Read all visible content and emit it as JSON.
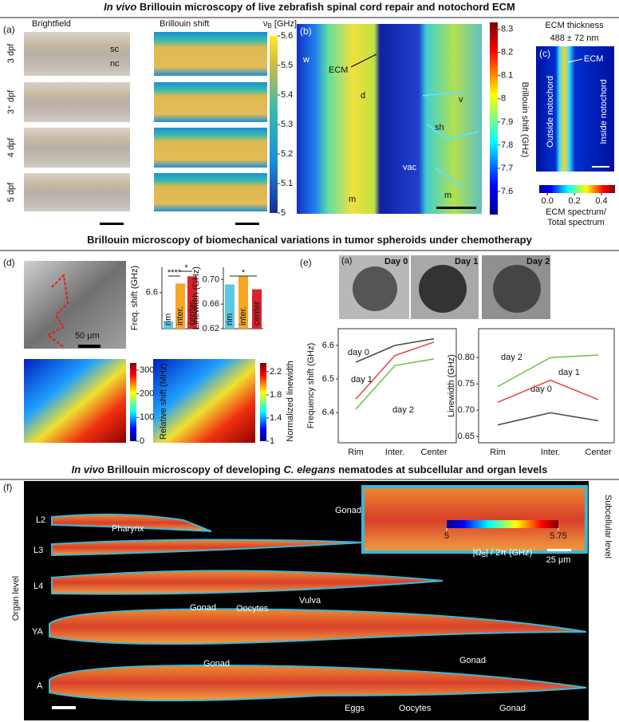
{
  "headers": [
    {
      "parts": [
        "In vivo",
        " Brillouin microscopy of live zebrafish spinal cord repair and notochord ECM"
      ]
    },
    {
      "parts": [
        "Brillouin microscopy of biomechanical variations in tumor spheroids under chemotherapy"
      ]
    },
    {
      "parts": [
        "In vivo",
        " Brillouin microscopy of developing ",
        "C. elegans",
        " nematodes at subcellular and organ levels"
      ]
    }
  ],
  "panel_a": {
    "label": "(a)",
    "brightfield": "Brightfield",
    "brillouin": "Brillouin shift",
    "unit_symbol": "ν",
    "unit_sub": "B",
    "unit": " [GHz]",
    "rows": [
      "3 dpf",
      "3⁺ dpf",
      "4 dpf",
      "5 dpf"
    ],
    "sc": "sc",
    "nc": "nc"
  },
  "panel_b": {
    "label": "(b)",
    "w": "w",
    "ecm": "ECM",
    "d": "d",
    "v": "v",
    "sh": "sh",
    "vac": "vac",
    "m1": "m",
    "m2": "m",
    "colorbar_label": "Brillouin shift (GHz)"
  },
  "panel_c": {
    "label": "(c)",
    "title": "ECM thickness",
    "value": "488 ± 72 nm",
    "ecm": "ECM",
    "outside": "Outside notochord",
    "inside": "Inside notochord",
    "colorbar_label": [
      "ECM spectrum/",
      "Total spectrum"
    ]
  },
  "panel_d": {
    "label": "(d)",
    "scale": "50 μm",
    "colorbar_labels": [
      "Relative shift (MHz)",
      "Normalized linewidth"
    ]
  },
  "panel_e": {
    "label": "(e)",
    "inset_label": "(a)",
    "days": [
      "Day 0",
      "Day 1",
      "Day 2"
    ]
  },
  "panel_f": {
    "label": "(f)",
    "stages": [
      "L2",
      "L3",
      "L4",
      "YA",
      "A"
    ],
    "organ_level": "Organ level",
    "subcellular_level": "Subcellular level",
    "scale": "25 μm",
    "annotations": [
      "Pharynx",
      "Vulva",
      "Gonad",
      "Oocytes",
      "Gonad",
      "Gonad",
      "Eggs",
      "Oocytes",
      "Gonad",
      "Gonad"
    ],
    "colorbar_label": [
      "|Ω",
      "B",
      "| / 2π (GHz)"
    ]
  },
  "colorbars": [
    {
      "lim": [
        5,
        5.6
      ],
      "ticks": [
        5.6,
        5.5,
        5.4,
        5.3,
        5.2,
        5.1,
        5
      ]
    },
    {
      "lim": [
        7.5,
        8.33
      ],
      "ticks": [
        8.3,
        8.2,
        8.1,
        8.0,
        7.9,
        7.8,
        7.7,
        7.6
      ]
    },
    {
      "lim": [
        -0.06,
        0.5
      ],
      "ticks": [
        {
          "value": 0,
          "label": "0.0"
        },
        0.2,
        0.4
      ]
    },
    {
      "lim": [
        0,
        330
      ],
      "ticks": [
        0,
        100,
        200,
        300
      ]
    },
    {
      "lim": [
        1,
        2.35
      ],
      "ticks": [
        1,
        1.4,
        1.8,
        2.2
      ]
    },
    {
      "lim": [
        5,
        5.75
      ],
      "ticks": [
        5,
        5.75
      ]
    }
  ],
  "chart_data": [
    {
      "type": "bar",
      "ylabel": "Freq. shift (GHz)",
      "categories": [
        "rim",
        "inter.",
        "center"
      ],
      "values": [
        6.52,
        6.625,
        6.645
      ],
      "colors": [
        "#5bc8e0",
        "#f5a623",
        "#d8232a"
      ],
      "ylim": [
        6.5,
        6.67
      ],
      "yticks": [
        6.6
      ],
      "annotations": [
        "****",
        "*"
      ]
    },
    {
      "type": "bar",
      "ylabel": "Linewidth (GHz)",
      "categories": [
        "rim",
        "inter.",
        "center"
      ],
      "values": [
        0.692,
        0.705,
        0.684
      ],
      "colors": [
        "#5bc8e0",
        "#f5a623",
        "#d8232a"
      ],
      "ylim": [
        0.62,
        0.72
      ],
      "yticks": [
        0.62,
        0.66,
        {
          "value": 0.7,
          "label": "0.70"
        }
      ],
      "annotations": [
        "*"
      ]
    },
    {
      "type": "line",
      "ylabel": "Frequency shift (GHz)",
      "categories": [
        "Rim",
        "Inter.",
        "Center"
      ],
      "ylim": [
        6.31,
        6.65
      ],
      "yticks": [
        6.4,
        6.5,
        6.6
      ],
      "series": [
        {
          "name": "day 0",
          "color": "#444444",
          "values": [
            6.55,
            6.6,
            6.62
          ]
        },
        {
          "name": "day 1",
          "color": "#e8423f",
          "values": [
            6.44,
            6.57,
            6.61
          ]
        },
        {
          "name": "day 2",
          "color": "#6cbf4a",
          "values": [
            6.41,
            6.54,
            6.56
          ]
        }
      ]
    },
    {
      "type": "line",
      "ylabel": "Linewidth (GHz)",
      "categories": [
        "Rim",
        "Inter.",
        "Center"
      ],
      "ylim": [
        0.638,
        0.855
      ],
      "yticks": [
        0.65,
        {
          "value": 0.7,
          "label": "0.70"
        },
        0.75,
        {
          "value": 0.8,
          "label": "0.80"
        }
      ],
      "series": [
        {
          "name": "day 0",
          "color": "#444444",
          "values": [
            0.672,
            0.695,
            0.68
          ]
        },
        {
          "name": "day 1",
          "color": "#e8423f",
          "values": [
            0.715,
            0.757,
            0.72
          ]
        },
        {
          "name": "day 2",
          "color": "#6cbf4a",
          "values": [
            0.745,
            0.8,
            0.805
          ]
        }
      ]
    }
  ]
}
